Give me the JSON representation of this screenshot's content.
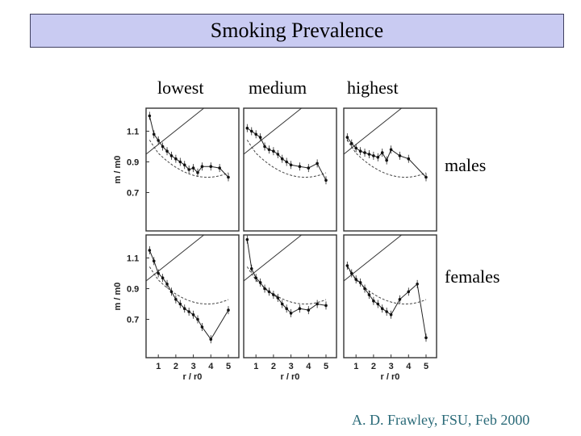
{
  "title": "Smoking Prevalence",
  "columns": [
    "lowest",
    "medium",
    "highest"
  ],
  "rows": [
    "males",
    "females"
  ],
  "credit": "A. D. Frawley, FSU, Feb 2000",
  "ylabel": "m / m0",
  "xlabel": "r / r0",
  "chart_data": {
    "type": "scatter",
    "title": "Smoking Prevalence",
    "xlabel": "r / r0",
    "ylabel": "m / m0",
    "xlim": [
      0.3,
      5.6
    ],
    "ylim": [
      0.45,
      1.25
    ],
    "yticks": [
      "1.1",
      "0.9",
      "0.7"
    ],
    "xticks": [
      "1",
      "2",
      "3",
      "4",
      "5"
    ],
    "panels": [
      {
        "row": "males",
        "col": "lowest",
        "series": [
          {
            "x": [
              0.5,
              0.75,
              1.0,
              1.25,
              1.5,
              1.75,
              2.0,
              2.25,
              2.5,
              2.75,
              3.0,
              3.25,
              3.5,
              4.0,
              4.5,
              5.0
            ],
            "y": [
              1.2,
              1.08,
              1.04,
              1.0,
              0.97,
              0.94,
              0.92,
              0.9,
              0.88,
              0.85,
              0.86,
              0.83,
              0.87,
              0.87,
              0.86,
              0.8
            ]
          }
        ]
      },
      {
        "row": "males",
        "col": "medium",
        "series": [
          {
            "x": [
              0.5,
              0.75,
              1.0,
              1.25,
              1.5,
              1.75,
              2.0,
              2.25,
              2.5,
              2.75,
              3.0,
              3.5,
              4.0,
              4.5,
              5.0
            ],
            "y": [
              1.12,
              1.1,
              1.08,
              1.06,
              1.0,
              0.98,
              0.97,
              0.95,
              0.92,
              0.9,
              0.88,
              0.87,
              0.86,
              0.89,
              0.78
            ]
          }
        ]
      },
      {
        "row": "males",
        "col": "highest",
        "series": [
          {
            "x": [
              0.5,
              0.75,
              1.0,
              1.25,
              1.5,
              1.75,
              2.0,
              2.25,
              2.5,
              2.75,
              3.0,
              3.5,
              4.0,
              5.0
            ],
            "y": [
              1.06,
              1.02,
              0.99,
              0.97,
              0.96,
              0.95,
              0.94,
              0.93,
              0.96,
              0.91,
              0.98,
              0.94,
              0.92,
              0.8
            ]
          }
        ]
      },
      {
        "row": "females",
        "col": "lowest",
        "series": [
          {
            "x": [
              0.5,
              0.75,
              1.0,
              1.25,
              1.5,
              1.75,
              2.0,
              2.25,
              2.5,
              2.75,
              3.0,
              3.25,
              3.5,
              4.0,
              5.0
            ],
            "y": [
              1.15,
              1.08,
              1.0,
              0.97,
              0.93,
              0.88,
              0.83,
              0.8,
              0.77,
              0.75,
              0.73,
              0.7,
              0.65,
              0.57,
              0.76
            ]
          }
        ]
      },
      {
        "row": "females",
        "col": "medium",
        "series": [
          {
            "x": [
              0.5,
              0.75,
              1.0,
              1.25,
              1.5,
              1.75,
              2.0,
              2.25,
              2.5,
              2.75,
              3.0,
              3.5,
              4.0,
              4.5,
              5.0
            ],
            "y": [
              1.22,
              1.03,
              0.97,
              0.94,
              0.9,
              0.88,
              0.86,
              0.84,
              0.8,
              0.77,
              0.74,
              0.77,
              0.76,
              0.8,
              0.79
            ]
          }
        ]
      },
      {
        "row": "females",
        "col": "highest",
        "series": [
          {
            "x": [
              0.5,
              0.75,
              1.0,
              1.25,
              1.5,
              1.75,
              2.0,
              2.25,
              2.5,
              2.75,
              3.0,
              3.5,
              4.0,
              4.5,
              5.0
            ],
            "y": [
              1.05,
              1.0,
              0.96,
              0.94,
              0.9,
              0.86,
              0.82,
              0.8,
              0.77,
              0.75,
              0.73,
              0.83,
              0.88,
              0.93,
              0.58
            ]
          }
        ]
      }
    ]
  }
}
